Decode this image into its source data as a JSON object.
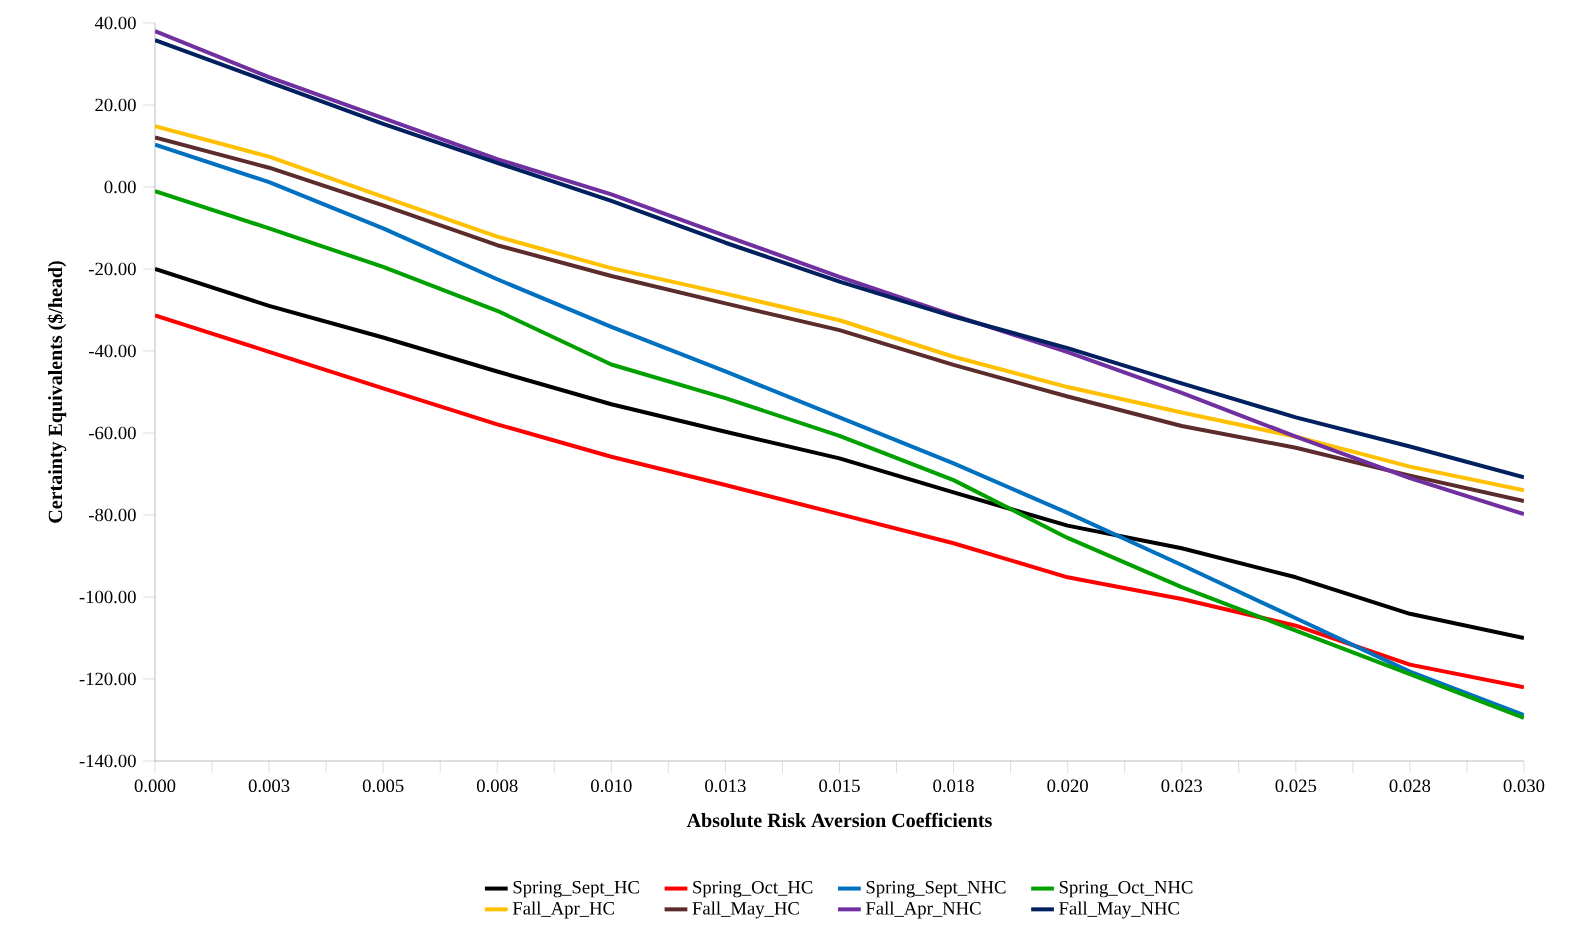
{
  "chart_data": {
    "type": "line",
    "xlabel": "Absolute Risk Aversion Coefficients",
    "ylabel": "Certainty Equivalents  ($/head)",
    "x": [
      0,
      0.0025,
      0.005,
      0.0075,
      0.01,
      0.0125,
      0.015,
      0.0175,
      0.02,
      0.0225,
      0.025,
      0.0275,
      0.03
    ],
    "series": [
      {
        "name": "Spring_Sept_HC",
        "color": "#000000",
        "values": [
          -20.0,
          -29.0,
          -36.7,
          -45.0,
          -53.0,
          -59.7,
          -66.2,
          -74.5,
          -82.6,
          -88.1,
          -95.2,
          -104.1,
          -110.0
        ]
      },
      {
        "name": "Spring_Oct_HC",
        "color": "#ff0000",
        "values": [
          -31.3,
          -40.2,
          -49.1,
          -57.9,
          -65.8,
          -72.7,
          -79.8,
          -86.9,
          -95.2,
          -100.5,
          -107.0,
          -116.5,
          -122.0
        ]
      },
      {
        "name": "Spring_Sept_NHC",
        "color": "#0070c0",
        "values": [
          10.3,
          1.2,
          -10.1,
          -22.5,
          -34.1,
          -45.0,
          -56.2,
          -67.4,
          -79.5,
          -92.2,
          -105.2,
          -118.2,
          -128.8
        ]
      },
      {
        "name": "Spring_Oct_NHC",
        "color": "#00a000",
        "values": [
          -1.0,
          -10.1,
          -19.5,
          -30.2,
          -43.3,
          -51.5,
          -60.7,
          -71.5,
          -85.6,
          -97.6,
          -108.2,
          -118.8,
          -129.5
        ]
      },
      {
        "name": "Fall_Apr_HC",
        "color": "#ffc000",
        "values": [
          14.8,
          7.4,
          -2.4,
          -12.1,
          -19.8,
          -26.0,
          -32.5,
          -41.4,
          -48.8,
          -55.0,
          -60.9,
          -68.2,
          -74.0
        ]
      },
      {
        "name": "Fall_May_HC",
        "color": "#5c2b2b",
        "values": [
          12.1,
          4.7,
          -4.5,
          -14.2,
          -21.7,
          -28.4,
          -34.9,
          -43.4,
          -51.1,
          -58.3,
          -63.6,
          -70.4,
          -76.6
        ]
      },
      {
        "name": "Fall_Apr_NHC",
        "color": "#7030a0",
        "values": [
          38.0,
          26.8,
          16.8,
          6.8,
          -1.8,
          -11.9,
          -21.9,
          -31.3,
          -40.3,
          -50.2,
          -60.9,
          -71.0,
          -79.8
        ]
      },
      {
        "name": "Fall_May_NHC",
        "color": "#002060",
        "values": [
          35.8,
          25.6,
          15.4,
          5.9,
          -3.4,
          -13.6,
          -23.1,
          -31.6,
          -39.3,
          -47.9,
          -56.2,
          -63.3,
          -70.8
        ]
      }
    ],
    "xlim": [
      0,
      0.03
    ],
    "ylim": [
      -140,
      40
    ],
    "xticks": [
      {
        "value": 0,
        "label": "0.000"
      },
      {
        "value": 0.00125,
        "label": null
      },
      {
        "value": 0.0025,
        "label": "0.003"
      },
      {
        "value": 0.00375,
        "label": null
      },
      {
        "value": 0.005,
        "label": "0.005"
      },
      {
        "value": 0.00625,
        "label": null
      },
      {
        "value": 0.0075,
        "label": "0.008"
      },
      {
        "value": 0.00875,
        "label": null
      },
      {
        "value": 0.01,
        "label": "0.010"
      },
      {
        "value": 0.01125,
        "label": null
      },
      {
        "value": 0.0125,
        "label": "0.013"
      },
      {
        "value": 0.01375,
        "label": null
      },
      {
        "value": 0.015,
        "label": "0.015"
      },
      {
        "value": 0.01625,
        "label": null
      },
      {
        "value": 0.0175,
        "label": "0.018"
      },
      {
        "value": 0.01875,
        "label": null
      },
      {
        "value": 0.02,
        "label": "0.020"
      },
      {
        "value": 0.02125,
        "label": null
      },
      {
        "value": 0.0225,
        "label": "0.023"
      },
      {
        "value": 0.02375,
        "label": null
      },
      {
        "value": 0.025,
        "label": "0.025"
      },
      {
        "value": 0.02625,
        "label": null
      },
      {
        "value": 0.0275,
        "label": "0.028"
      },
      {
        "value": 0.02875,
        "label": null
      },
      {
        "value": 0.03,
        "label": "0.030"
      }
    ],
    "yticks": [
      {
        "value": -140,
        "label": "-140.00"
      },
      {
        "value": -120,
        "label": "-120.00"
      },
      {
        "value": -100,
        "label": "-100.00"
      },
      {
        "value": -80,
        "label": "-80.00"
      },
      {
        "value": -60,
        "label": "-60.00"
      },
      {
        "value": -40,
        "label": "-40.00"
      },
      {
        "value": -20,
        "label": "-20.00"
      },
      {
        "value": 0,
        "label": "0.00"
      },
      {
        "value": 20,
        "label": "20.00"
      },
      {
        "value": 40,
        "label": "40.00"
      }
    ],
    "grid": false,
    "legend": "bottom",
    "marker": "none",
    "line_style": "solid"
  }
}
